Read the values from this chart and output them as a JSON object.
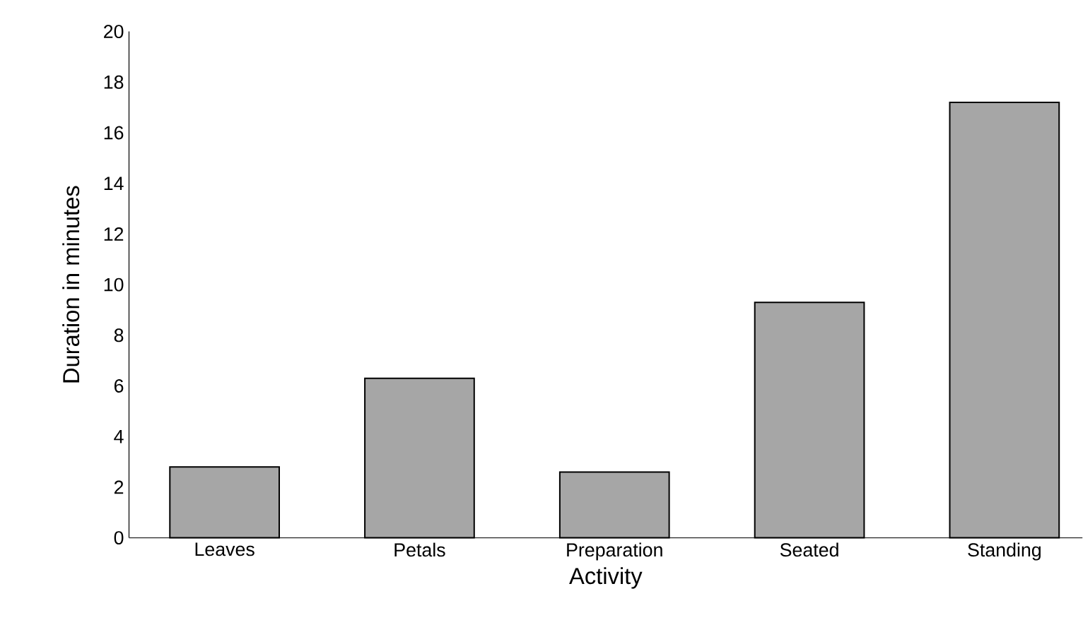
{
  "chart_data": {
    "type": "bar",
    "xlabel": "Activity",
    "ylabel": "Duration in minutes",
    "categories": [
      "Leaves",
      "Petals",
      "Preparation",
      "Seated",
      "Standing"
    ],
    "values": [
      2.8,
      6.3,
      2.6,
      9.3,
      17.2
    ],
    "color": "#a6a6a6",
    "ylim": [
      0,
      20
    ],
    "yticks": [
      0,
      2,
      4,
      6,
      8,
      10,
      12,
      14,
      16,
      18,
      20
    ]
  }
}
